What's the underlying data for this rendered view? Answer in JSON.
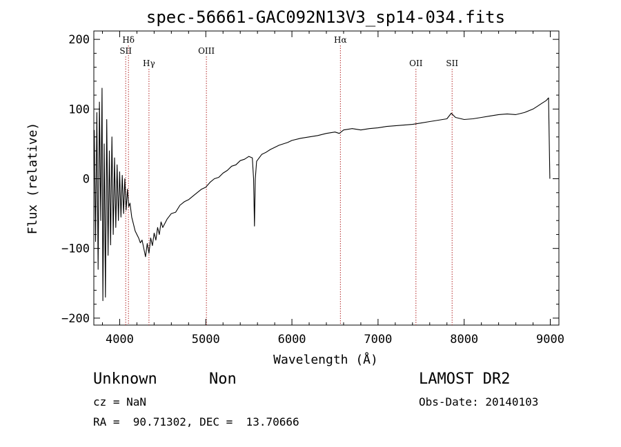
{
  "chart_data": {
    "type": "line",
    "title": "spec-56661-GAC092N13V3_sp14-034.fits",
    "xlabel": "Wavelength (Å)",
    "ylabel": "Flux (relative)",
    "xlim": [
      3700,
      9100
    ],
    "ylim": [
      -210,
      212
    ],
    "x_ticks": [
      4000,
      5000,
      6000,
      7000,
      8000,
      9000
    ],
    "y_ticks": [
      -200,
      -100,
      0,
      100,
      200
    ],
    "grid": false,
    "series": [
      {
        "color": "#000000",
        "points": [
          [
            3705,
            70
          ],
          [
            3720,
            -90
          ],
          [
            3735,
            95
          ],
          [
            3750,
            -130
          ],
          [
            3765,
            110
          ],
          [
            3780,
            -60
          ],
          [
            3795,
            130
          ],
          [
            3805,
            -175
          ],
          [
            3820,
            50
          ],
          [
            3835,
            -170
          ],
          [
            3850,
            85
          ],
          [
            3865,
            -110
          ],
          [
            3880,
            40
          ],
          [
            3895,
            -95
          ],
          [
            3910,
            60
          ],
          [
            3925,
            -80
          ],
          [
            3940,
            30
          ],
          [
            3955,
            -70
          ],
          [
            3970,
            20
          ],
          [
            3985,
            -60
          ],
          [
            4000,
            10
          ],
          [
            4015,
            -55
          ],
          [
            4030,
            5
          ],
          [
            4045,
            -50
          ],
          [
            4060,
            0
          ],
          [
            4075,
            -45
          ],
          [
            4090,
            -15
          ],
          [
            4105,
            -40
          ],
          [
            4120,
            -35
          ],
          [
            4140,
            -55
          ],
          [
            4160,
            -65
          ],
          [
            4180,
            -75
          ],
          [
            4200,
            -80
          ],
          [
            4220,
            -85
          ],
          [
            4240,
            -92
          ],
          [
            4260,
            -88
          ],
          [
            4280,
            -100
          ],
          [
            4300,
            -112
          ],
          [
            4320,
            -93
          ],
          [
            4340,
            -107
          ],
          [
            4360,
            -85
          ],
          [
            4380,
            -96
          ],
          [
            4400,
            -78
          ],
          [
            4420,
            -88
          ],
          [
            4440,
            -70
          ],
          [
            4460,
            -80
          ],
          [
            4480,
            -62
          ],
          [
            4500,
            -70
          ],
          [
            4550,
            -58
          ],
          [
            4600,
            -50
          ],
          [
            4650,
            -48
          ],
          [
            4700,
            -38
          ],
          [
            4750,
            -33
          ],
          [
            4800,
            -30
          ],
          [
            4850,
            -25
          ],
          [
            4900,
            -20
          ],
          [
            4950,
            -15
          ],
          [
            5000,
            -12
          ],
          [
            5050,
            -5
          ],
          [
            5100,
            0
          ],
          [
            5150,
            2
          ],
          [
            5200,
            8
          ],
          [
            5250,
            12
          ],
          [
            5300,
            18
          ],
          [
            5350,
            20
          ],
          [
            5400,
            26
          ],
          [
            5450,
            28
          ],
          [
            5500,
            32
          ],
          [
            5540,
            30
          ],
          [
            5555,
            0
          ],
          [
            5565,
            -68
          ],
          [
            5575,
            0
          ],
          [
            5590,
            25
          ],
          [
            5650,
            35
          ],
          [
            5700,
            38
          ],
          [
            5750,
            42
          ],
          [
            5800,
            45
          ],
          [
            5850,
            48
          ],
          [
            5900,
            50
          ],
          [
            5950,
            52
          ],
          [
            6000,
            55
          ],
          [
            6100,
            58
          ],
          [
            6200,
            60
          ],
          [
            6300,
            62
          ],
          [
            6400,
            65
          ],
          [
            6500,
            67
          ],
          [
            6550,
            65
          ],
          [
            6600,
            70
          ],
          [
            6700,
            72
          ],
          [
            6800,
            70
          ],
          [
            6900,
            72
          ],
          [
            7000,
            73
          ],
          [
            7100,
            75
          ],
          [
            7200,
            76
          ],
          [
            7300,
            77
          ],
          [
            7400,
            78
          ],
          [
            7500,
            80
          ],
          [
            7600,
            82
          ],
          [
            7700,
            84
          ],
          [
            7800,
            86
          ],
          [
            7850,
            94
          ],
          [
            7900,
            88
          ],
          [
            8000,
            85
          ],
          [
            8100,
            86
          ],
          [
            8200,
            88
          ],
          [
            8300,
            90
          ],
          [
            8400,
            92
          ],
          [
            8500,
            93
          ],
          [
            8600,
            92
          ],
          [
            8700,
            95
          ],
          [
            8800,
            100
          ],
          [
            8850,
            104
          ],
          [
            8900,
            108
          ],
          [
            8950,
            112
          ],
          [
            8980,
            116
          ],
          [
            8995,
            0
          ]
        ]
      }
    ],
    "line_markers": [
      {
        "label": "Hδ",
        "x": 4102,
        "level": 1
      },
      {
        "label": "SII",
        "x": 4070,
        "level": 2
      },
      {
        "label": "Hγ",
        "x": 4340,
        "level": 3
      },
      {
        "label": "OIII",
        "x": 5007,
        "level": 2
      },
      {
        "label": "Hα",
        "x": 6563,
        "level": 1
      },
      {
        "label": "OII",
        "x": 7440,
        "level": 3
      },
      {
        "label": "SII",
        "x": 7860,
        "level": 3
      }
    ]
  },
  "info": {
    "class": "Unknown",
    "subclass": "Non",
    "survey": "LAMOST DR2",
    "cz": "cz = NaN",
    "obs_date": "Obs-Date: 20140103",
    "coords": "RA =  90.71302, DEC =  13.70666"
  }
}
